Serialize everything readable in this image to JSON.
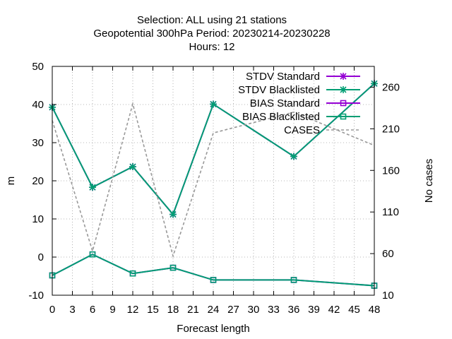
{
  "chart_data": {
    "type": "line",
    "title_lines": [
      "Selection: ALL using    21 stations",
      "Geopotential 300hPa   Period: 20230214-20230228",
      "Hours:  12"
    ],
    "xlabel": "Forecast length",
    "ylabel": "m",
    "y2label": "No cases",
    "xlim": [
      0,
      48
    ],
    "ylim": [
      -10,
      50
    ],
    "y2lim": [
      10,
      285
    ],
    "xticks": [
      0,
      3,
      6,
      9,
      12,
      15,
      18,
      21,
      24,
      27,
      30,
      33,
      36,
      39,
      42,
      45,
      48
    ],
    "yticks": [
      -10,
      0,
      10,
      20,
      30,
      40,
      50
    ],
    "y2ticks": [
      10,
      60,
      110,
      160,
      210,
      260
    ],
    "grid": true,
    "legend_position": "top-right",
    "x": [
      0,
      6,
      12,
      18,
      24,
      36,
      48
    ],
    "series": [
      {
        "name": "STDV Standard",
        "axis": "y",
        "color": "#9400d3",
        "marker": "star",
        "dash": "none",
        "values": [
          39.3,
          18.3,
          23.7,
          11.2,
          40.1,
          26.4,
          45.5
        ]
      },
      {
        "name": "STDV Blacklisted",
        "axis": "y",
        "color": "#009e73",
        "marker": "star",
        "dash": "none",
        "values": [
          39.3,
          18.3,
          23.7,
          11.2,
          40.1,
          26.4,
          45.5
        ]
      },
      {
        "name": "BIAS Standard",
        "axis": "y",
        "color": "#9400d3",
        "marker": "square",
        "dash": "none",
        "values": [
          -4.8,
          0.7,
          -4.3,
          -2.8,
          -6.0,
          -6.0,
          -7.5
        ]
      },
      {
        "name": "BIAS Blacklisted",
        "axis": "y",
        "color": "#009e73",
        "marker": "square",
        "dash": "none",
        "values": [
          -4.8,
          0.7,
          -4.3,
          -2.8,
          -6.0,
          -6.0,
          -7.5
        ]
      },
      {
        "name": "CASES",
        "axis": "y2",
        "color": "#999999",
        "marker": "none",
        "dash": "dashed",
        "values": [
          220,
          63,
          240,
          57,
          205,
          230,
          190
        ]
      }
    ]
  }
}
